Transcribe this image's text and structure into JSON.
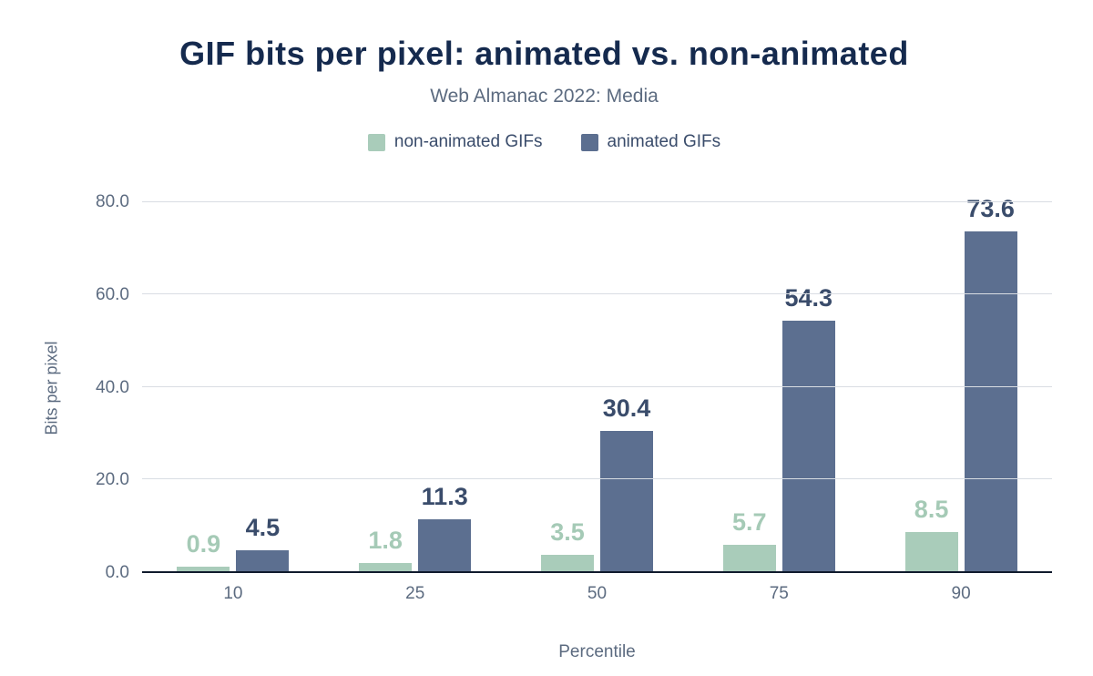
{
  "chart_data": {
    "type": "bar",
    "title": "GIF bits per pixel: animated vs. non-animated",
    "subtitle": "Web Almanac 2022: Media",
    "xlabel": "Percentile",
    "ylabel": "Bits per pixel",
    "categories": [
      "10",
      "25",
      "50",
      "75",
      "90"
    ],
    "series": [
      {
        "name": "non-animated GIFs",
        "color": "#a9ccba",
        "label_color": "#a5cab6",
        "values": [
          0.9,
          1.8,
          3.5,
          5.7,
          8.5
        ]
      },
      {
        "name": "animated GIFs",
        "color": "#5c6f90",
        "label_color": "#3a4c6b",
        "values": [
          4.5,
          11.3,
          30.4,
          54.3,
          73.6
        ]
      }
    ],
    "ylim": [
      0,
      80
    ],
    "yticks": [
      "0.0",
      "20.0",
      "40.0",
      "60.0",
      "80.0"
    ],
    "grid": "horizontal",
    "legend_position": "top",
    "colors": {
      "title": "#152a4e",
      "axis_text": "#5c6b80",
      "gridline": "#d9dde3",
      "baseline": "#101b2d"
    }
  }
}
